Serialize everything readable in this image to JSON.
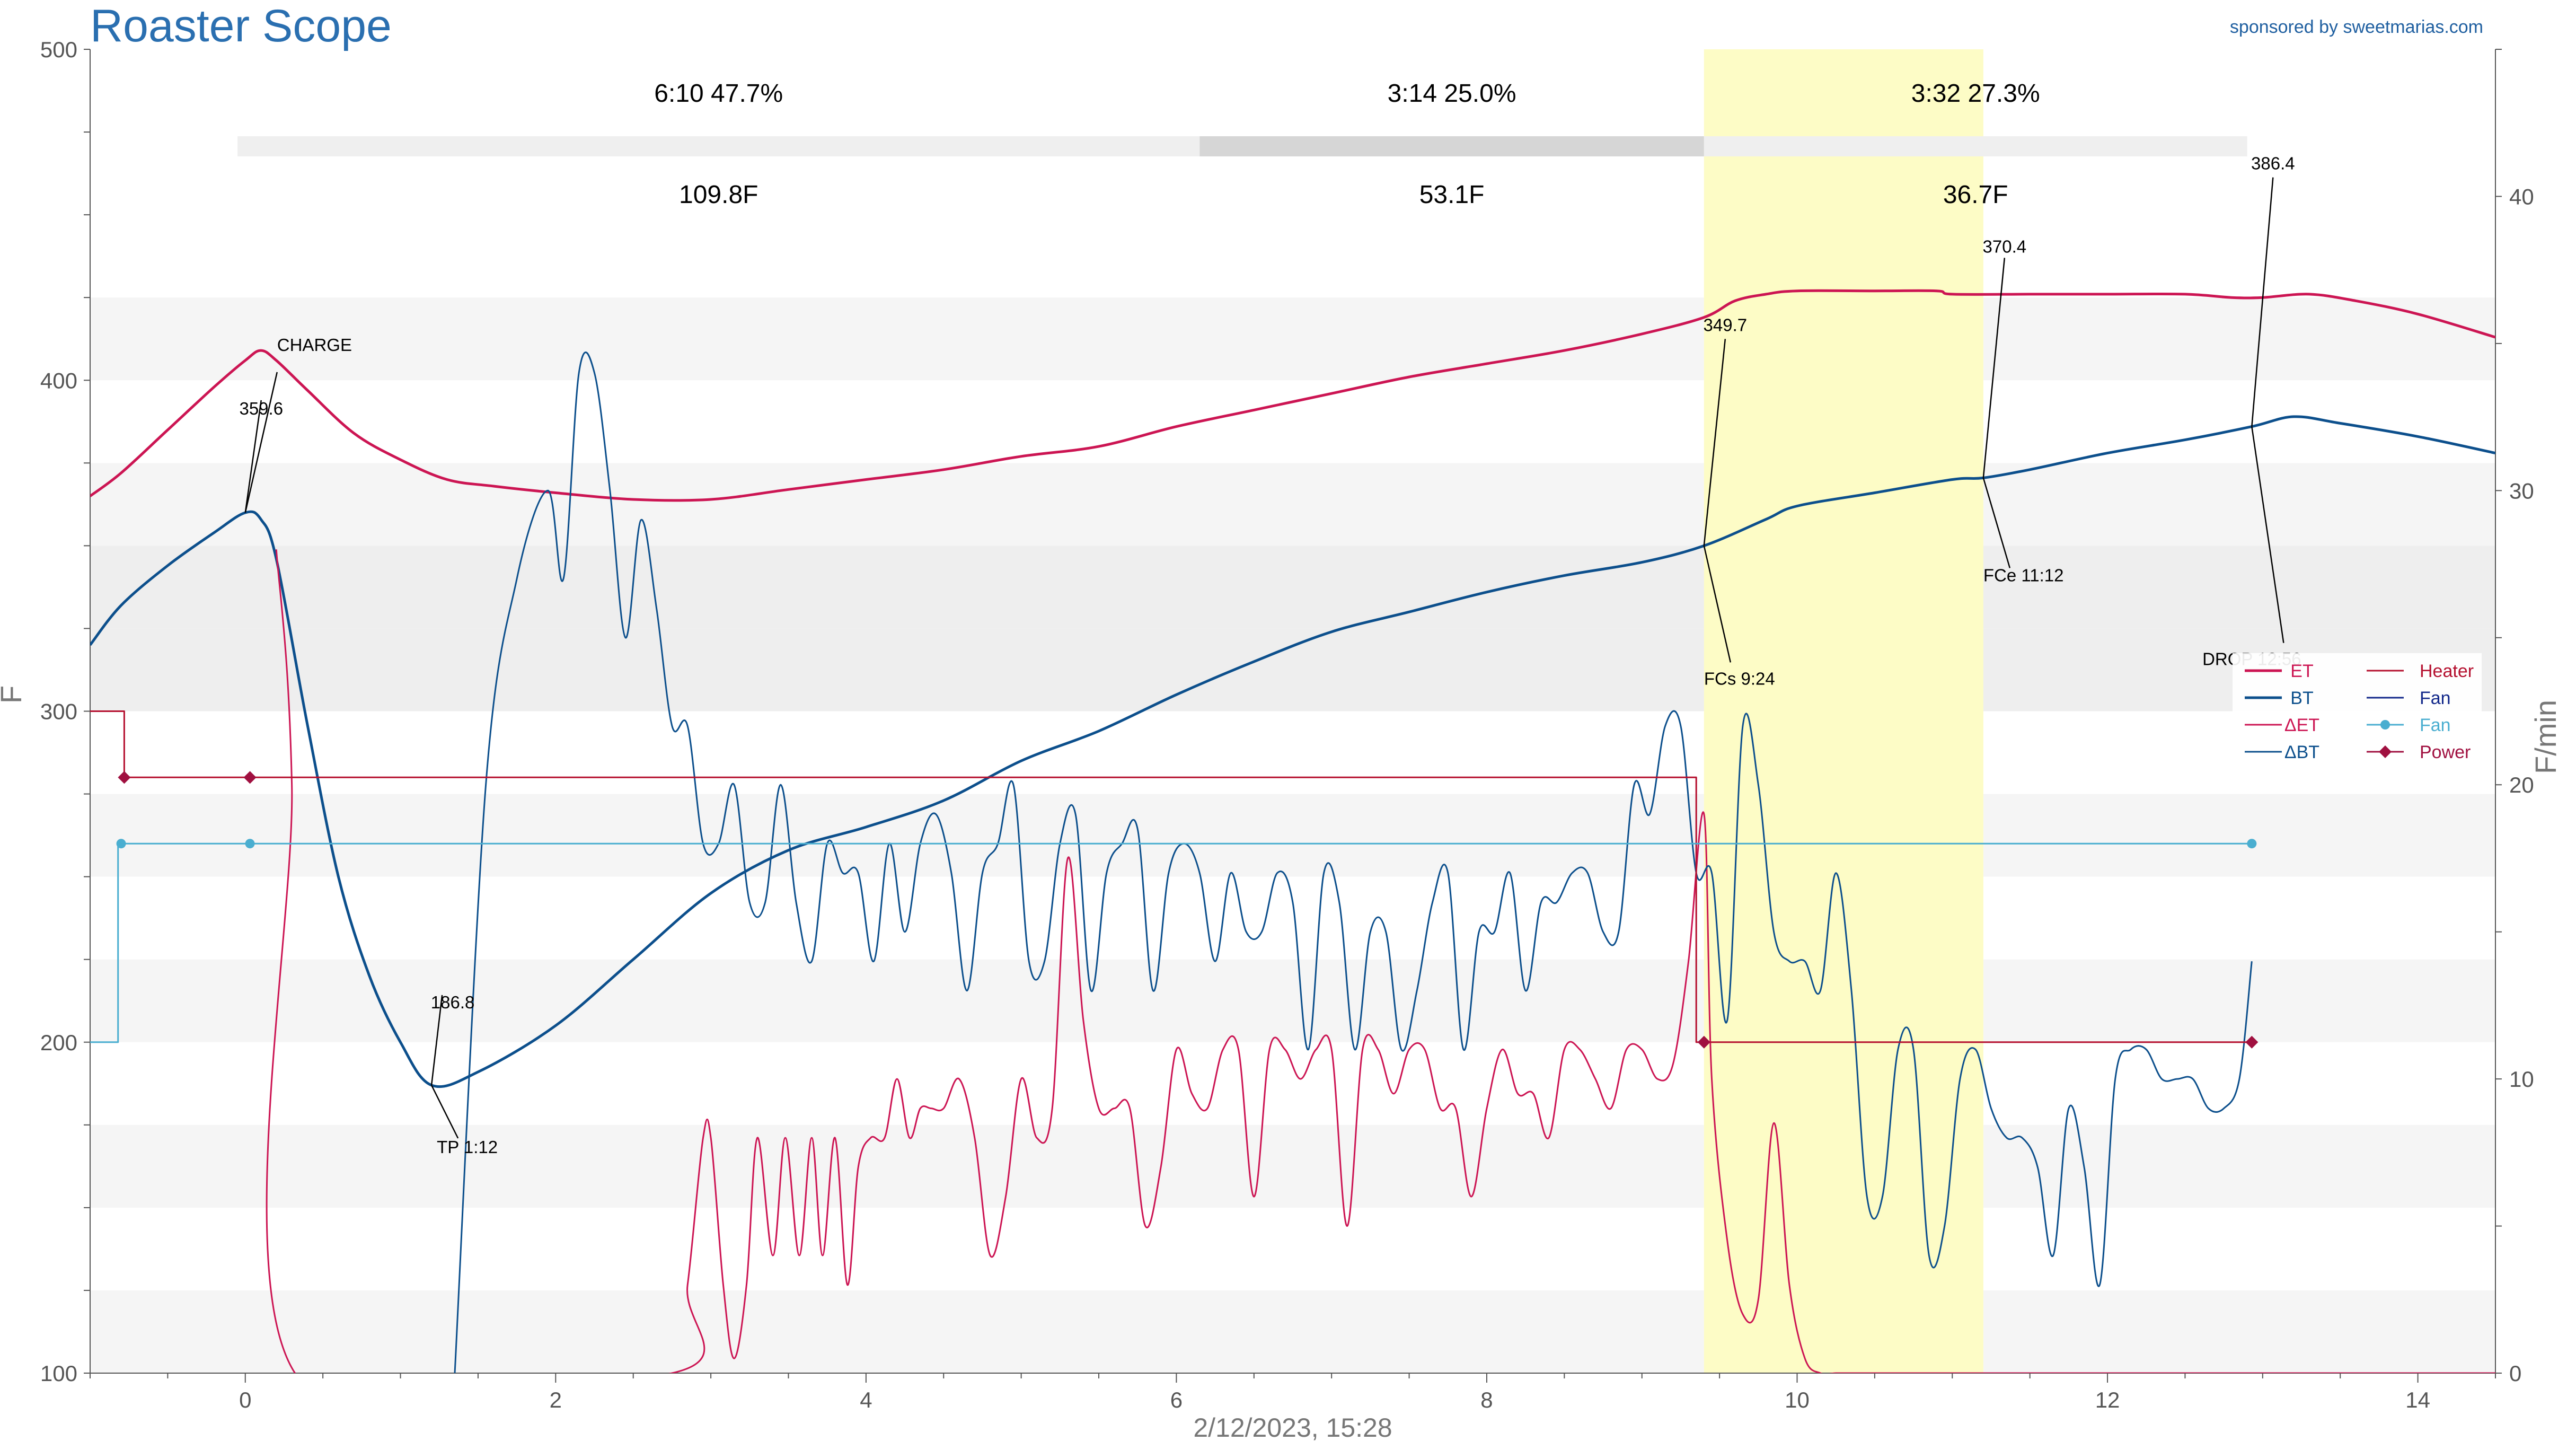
{
  "header": {
    "title": "Roaster Scope",
    "sponsor": "sponsored by sweetmarias.com"
  },
  "chart_data": {
    "type": "line",
    "xlabel": "2/12/2023, 15:28",
    "ylabel_left": "F",
    "ylabel_right": "F/min",
    "xlim": [
      -1,
      14.5
    ],
    "ylim_left": [
      100,
      500
    ],
    "ylim_right": [
      0,
      45
    ],
    "x_ticks": [
      0,
      2,
      4,
      6,
      8,
      10,
      12,
      14
    ],
    "y_left_ticks": [
      100,
      200,
      300,
      400,
      500
    ],
    "y_right_ticks": [
      0,
      10,
      20,
      30,
      40
    ],
    "grid": false,
    "legend_position": "right",
    "legend": [
      {
        "label": "ET",
        "color": "#cc1553",
        "marker": "line"
      },
      {
        "label": "Heater",
        "color": "#b5102f",
        "marker": "line"
      },
      {
        "label": "BT",
        "color": "#0c4f8c",
        "marker": "line"
      },
      {
        "label": "Fan",
        "color": "#12288a",
        "marker": "line"
      },
      {
        "label": "ΔET",
        "color": "#cc1553",
        "marker": "line"
      },
      {
        "label": "Fan",
        "color": "#4aaed0",
        "marker": "dot"
      },
      {
        "label": "ΔBT",
        "color": "#0c4f8c",
        "marker": "line"
      },
      {
        "label": "Power",
        "color": "#a01040",
        "marker": "diamond"
      }
    ],
    "phases": [
      {
        "time": "6:10",
        "pct": "47.7%",
        "rise": "109.8F"
      },
      {
        "time": "3:14",
        "pct": "25.0%",
        "rise": "53.1F"
      },
      {
        "time": "3:32",
        "pct": "27.3%",
        "rise": "36.7F"
      }
    ],
    "phase_bar_breaks": [
      -0.05,
      6.15,
      9.4,
      12.9
    ],
    "first_crack_band": [
      9.4,
      11.2
    ],
    "events": [
      {
        "label": "CHARGE",
        "value": "359.6",
        "x": 0.0,
        "y": 360
      },
      {
        "label": "TP 1:12",
        "value": "186.8",
        "x": 1.2,
        "y": 187
      },
      {
        "label": "FCs 9:24",
        "value": "349.7",
        "x": 9.4,
        "y": 350
      },
      {
        "label": "FCe 11:12",
        "value": "370.4",
        "x": 11.2,
        "y": 370.5
      },
      {
        "label": "DROP 12:56",
        "value": "386.4",
        "x": 12.93,
        "y": 386
      }
    ],
    "series": [
      {
        "name": "ET",
        "axis": "left",
        "color": "#cc1553",
        "x": [
          -1,
          -0.8,
          -0.5,
          -0.2,
          0.0,
          0.1,
          0.2,
          0.4,
          0.7,
          1.0,
          1.3,
          1.6,
          2.0,
          2.5,
          3.0,
          3.5,
          4.0,
          4.5,
          5.0,
          5.5,
          6.0,
          6.5,
          7.0,
          7.5,
          8.0,
          8.5,
          9.0,
          9.4,
          9.6,
          9.8,
          10.0,
          10.5,
          10.9,
          11.0,
          11.5,
          12.0,
          12.5,
          12.8,
          13.0,
          13.3,
          13.6,
          14.0,
          14.5
        ],
        "y": [
          365,
          372,
          385,
          398,
          406,
          409,
          406,
          397,
          384,
          376,
          370,
          368,
          366,
          364,
          364,
          367,
          370,
          373,
          377,
          380,
          386,
          391,
          396,
          401,
          405,
          409,
          414,
          419,
          424,
          426,
          427,
          427,
          427,
          426,
          426,
          426,
          426,
          425,
          425,
          426,
          424,
          420,
          413
        ]
      },
      {
        "name": "BT",
        "axis": "left",
        "color": "#0c4f8c",
        "x": [
          -1,
          -0.8,
          -0.5,
          -0.2,
          0.0,
          0.1,
          0.2,
          0.4,
          0.6,
          0.8,
          1.0,
          1.2,
          1.5,
          2.0,
          2.5,
          3.0,
          3.5,
          4.0,
          4.5,
          5.0,
          5.5,
          6.0,
          6.5,
          7.0,
          7.5,
          8.0,
          8.5,
          9.0,
          9.4,
          9.8,
          10.0,
          10.5,
          11.0,
          11.2,
          11.5,
          12.0,
          12.5,
          12.93,
          13.2,
          13.5,
          14.0,
          14.5
        ],
        "y": [
          320,
          332,
          344,
          354,
          360,
          358,
          346,
          296,
          250,
          220,
          200,
          187,
          191,
          205,
          225,
          245,
          258,
          265,
          273,
          285,
          294,
          305,
          315,
          324,
          330,
          336,
          341,
          345,
          350,
          358,
          362,
          366,
          370,
          370.5,
          373,
          378,
          382,
          386,
          389,
          387,
          383,
          378
        ]
      },
      {
        "name": "ΔET",
        "axis": "right",
        "color": "#cc1553",
        "x": [
          0.2,
          0.3,
          0.32,
          2.75,
          2.85,
          2.95,
          3.0,
          3.08,
          3.15,
          3.23,
          3.3,
          3.4,
          3.48,
          3.57,
          3.65,
          3.72,
          3.8,
          3.88,
          3.95,
          4.03,
          4.12,
          4.2,
          4.28,
          4.35,
          4.42,
          4.5,
          4.6,
          4.7,
          4.8,
          4.9,
          5.0,
          5.1,
          5.2,
          5.3,
          5.4,
          5.5,
          5.6,
          5.7,
          5.8,
          5.9,
          6.0,
          6.1,
          6.2,
          6.3,
          6.4,
          6.5,
          6.6,
          6.7,
          6.8,
          6.9,
          7.0,
          7.1,
          7.2,
          7.3,
          7.4,
          7.5,
          7.6,
          7.7,
          7.8,
          7.9,
          8.0,
          8.1,
          8.2,
          8.3,
          8.4,
          8.5,
          8.6,
          8.7,
          8.8,
          8.9,
          9.0,
          9.1,
          9.2,
          9.3,
          9.4,
          9.45,
          9.55,
          9.65,
          9.75,
          9.85,
          9.95,
          10.05,
          10.15,
          10.25,
          10.35,
          10.45,
          10.55,
          10.7,
          14.5
        ],
        "y": [
          28,
          20,
          0,
          0,
          3,
          8,
          8,
          3,
          0.5,
          3,
          8,
          4,
          8,
          4,
          8,
          4,
          8,
          3,
          7,
          8,
          8,
          10,
          8,
          9,
          9,
          9,
          10,
          8,
          4,
          6,
          10,
          8,
          9,
          17.5,
          12,
          9,
          9,
          9,
          5,
          7,
          11,
          9.5,
          9,
          11,
          11,
          6,
          11,
          11,
          10,
          11,
          11,
          5,
          11,
          11,
          9.5,
          11,
          11,
          9,
          9,
          6,
          9,
          11,
          9.5,
          9.5,
          8,
          11,
          11,
          10,
          9,
          11,
          11,
          10,
          10.5,
          14,
          19,
          10,
          4.5,
          2,
          2.5,
          8.5,
          3,
          0.5,
          0,
          0,
          0,
          0,
          0,
          0,
          0
        ]
      },
      {
        "name": "ΔBT",
        "axis": "right",
        "color": "#0c4f8c",
        "x": [
          1.35,
          1.55,
          1.75,
          1.95,
          2.05,
          2.15,
          2.25,
          2.35,
          2.45,
          2.55,
          2.65,
          2.75,
          2.85,
          2.95,
          3.05,
          3.15,
          3.25,
          3.35,
          3.45,
          3.55,
          3.65,
          3.75,
          3.85,
          3.95,
          4.05,
          4.15,
          4.25,
          4.35,
          4.45,
          4.55,
          4.65,
          4.75,
          4.85,
          4.95,
          5.05,
          5.15,
          5.25,
          5.35,
          5.45,
          5.55,
          5.65,
          5.75,
          5.85,
          5.95,
          6.05,
          6.15,
          6.25,
          6.35,
          6.45,
          6.55,
          6.65,
          6.75,
          6.85,
          6.95,
          7.05,
          7.15,
          7.25,
          7.35,
          7.45,
          7.55,
          7.65,
          7.75,
          7.85,
          7.95,
          8.05,
          8.15,
          8.25,
          8.35,
          8.45,
          8.55,
          8.65,
          8.75,
          8.85,
          8.95,
          9.05,
          9.15,
          9.25,
          9.35,
          9.45,
          9.55,
          9.65,
          9.75,
          9.85,
          9.95,
          10.05,
          10.15,
          10.25,
          10.35,
          10.45,
          10.55,
          10.65,
          10.75,
          10.85,
          10.95,
          11.05,
          11.15,
          11.25,
          11.35,
          11.45,
          11.55,
          11.65,
          11.75,
          11.85,
          11.95,
          12.05,
          12.15,
          12.25,
          12.35,
          12.45,
          12.55,
          12.65,
          12.75,
          12.85,
          12.93
        ],
        "y": [
          0,
          20,
          27,
          30,
          27,
          34,
          34,
          30,
          25,
          29,
          26,
          22,
          22,
          18,
          18,
          20,
          16,
          16,
          20,
          16,
          14,
          18,
          17,
          17,
          14,
          18,
          15,
          18,
          19,
          17,
          13,
          17,
          18,
          20,
          14,
          14,
          18,
          19,
          13,
          17,
          18,
          18.5,
          13,
          17,
          18,
          17,
          14,
          17,
          15,
          15,
          17,
          16,
          11,
          17,
          16,
          11,
          15,
          15,
          11,
          13,
          16,
          17,
          11,
          15,
          15,
          17,
          13,
          16,
          16,
          17,
          17,
          15,
          15,
          20,
          19,
          22,
          22,
          17,
          17,
          12,
          22,
          20,
          15,
          14,
          14,
          13,
          17,
          13,
          6,
          6,
          11,
          11,
          4,
          5,
          10,
          11,
          9,
          8,
          8,
          7,
          4,
          9,
          7,
          3,
          10,
          11,
          11,
          10,
          10,
          10,
          9,
          9,
          10,
          14
        ]
      },
      {
        "name": "Heater",
        "axis": "left",
        "color": "#b5102f",
        "step": true,
        "x": [
          -1,
          -0.78,
          -0.78,
          9.35,
          9.35,
          12.93
        ],
        "y": [
          300,
          300,
          280,
          280,
          200,
          200
        ]
      },
      {
        "name": "Fan",
        "axis": "left",
        "color": "#4aaed0",
        "step": true,
        "x": [
          -1,
          -0.82,
          -0.82,
          12.93
        ],
        "y": [
          200,
          200,
          260,
          260
        ]
      }
    ],
    "marker_points": [
      {
        "series": "Power",
        "color": "#a01040",
        "shape": "diamond",
        "x": [
          -0.78,
          0.03,
          9.4,
          12.93
        ],
        "y": [
          280,
          280,
          200,
          200
        ]
      },
      {
        "series": "Fan",
        "color": "#4aaed0",
        "shape": "dot",
        "x": [
          -0.8,
          0.03,
          12.93
        ],
        "y": [
          260,
          260,
          260
        ]
      }
    ]
  }
}
